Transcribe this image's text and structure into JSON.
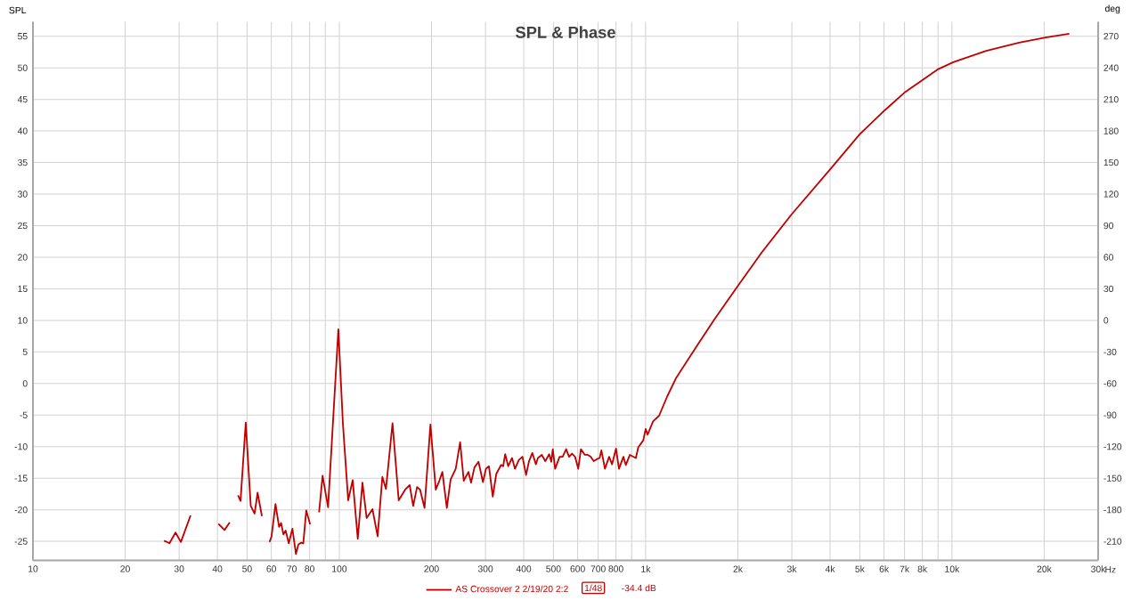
{
  "chart_data": {
    "type": "line",
    "title": "SPL & Phase",
    "ylabel": "SPL",
    "y2label": "deg",
    "log": "x",
    "grid": true,
    "legend": "bottom",
    "xlim": [
      10,
      30000
    ],
    "ylim": [
      -28,
      57.3
    ],
    "y2lim": [
      -228,
      283.8
    ],
    "xticks": [
      10,
      20,
      30,
      40,
      50,
      60,
      70,
      80,
      {
        "value": 90,
        "label": null
      },
      100,
      200,
      300,
      400,
      500,
      600,
      700,
      800,
      {
        "value": 900,
        "label": null
      },
      {
        "value": 1000,
        "label": "1k"
      },
      {
        "value": 2000,
        "label": "2k"
      },
      {
        "value": 3000,
        "label": "3k"
      },
      {
        "value": 4000,
        "label": "4k"
      },
      {
        "value": 5000,
        "label": "5k"
      },
      {
        "value": 6000,
        "label": "6k"
      },
      {
        "value": 7000,
        "label": "7k"
      },
      {
        "value": 8000,
        "label": "8k"
      },
      {
        "value": 9000,
        "label": null
      },
      {
        "value": 10000,
        "label": "10k"
      },
      {
        "value": 20000,
        "label": "20k"
      },
      {
        "value": 30000,
        "label": "30k"
      }
    ],
    "xlabel": "Hz",
    "yticks": [
      -25,
      -20,
      -15,
      -10,
      -5,
      0,
      5,
      10,
      15,
      20,
      25,
      30,
      35,
      40,
      45,
      50,
      55
    ],
    "y2ticks": [
      -210,
      -180,
      -150,
      -120,
      -90,
      -60,
      -30,
      0,
      30,
      60,
      90,
      120,
      150,
      180,
      210,
      240,
      270
    ],
    "annotations": [
      "1/48",
      "-34.4 dB"
    ],
    "series": [
      {
        "name": "AS Crossover 2 2/19/20 2:2",
        "color": "#c00000",
        "x": [
          26.8,
          27.9,
          29.2,
          30.4,
          32.7,
          null,
          40.3,
          42.2,
          43.9,
          null,
          46.7,
          47.6,
          49.5,
          51.4,
          52.9,
          54.1,
          55.9,
          null,
          59.2,
          60.1,
          61.9,
          63.6,
          64.6,
          65.7,
          66.8,
          68.4,
          70.3,
          72.2,
          73.5,
          75.1,
          76.3,
          78.0,
          80.3,
          null,
          85.9,
          88.2,
          91.9,
          99.3,
          102.7,
          106.9,
          110.6,
          114.9,
          119.0,
          122.8,
          128.3,
          133.4,
          138.2,
          142.0,
          149.2,
          156.3,
          164.1,
          169.7,
          174.3,
          179.4,
          183.5,
          189.8,
          198.4,
          206.5,
          212.1,
          217.0,
          224.4,
          230.9,
          239.9,
          248.0,
          254.8,
          264.0,
          269.3,
          276.1,
          284.7,
          294.4,
          301.2,
          307.9,
          316.9,
          325.5,
          337.5,
          342.7,
          348.0,
          356.0,
          366.4,
          374.5,
          385.7,
          396.3,
          407.1,
          416.2,
          426.6,
          438.2,
          445.0,
          458.0,
          470.4,
          484.4,
          492.0,
          497.6,
          506.4,
          523.6,
          535.7,
          550.2,
          562.3,
          574.9,
          588.2,
          602.5,
          614.8,
          633.1,
          647.1,
          661.6,
          676.8,
          692.0,
          707.5,
          717.1,
          736.6,
          760.1,
          777.1,
          800.3,
          818.2,
          846.0,
          861.5,
          888.3,
          929.0,
          946.0,
          982.2,
          1000,
          1015,
          1057,
          1106,
          1177,
          1258,
          1477,
          1673,
          1990,
          2397,
          2996,
          4033,
          5003,
          6040,
          7046,
          9026,
          10090,
          12930,
          16570,
          20210,
          24150
        ],
        "values": [
          -24.9,
          -25.3,
          -23.6,
          -25.1,
          -20.9,
          null,
          -22.2,
          -23.2,
          -22.0,
          null,
          -17.7,
          -18.6,
          -6.2,
          -19.4,
          -20.6,
          -17.3,
          -21.0,
          null,
          -25.1,
          -24.2,
          -19.1,
          -22.7,
          -22.1,
          -23.9,
          -23.3,
          -25.3,
          -23.0,
          -27.0,
          -25.5,
          -25.2,
          -25.3,
          -20.1,
          -22.3,
          null,
          -20.4,
          -14.6,
          -19.6,
          8.6,
          -6.2,
          -18.5,
          -15.3,
          -24.6,
          -15.7,
          -21.3,
          -19.9,
          -24.2,
          -14.8,
          -16.7,
          -6.3,
          -18.5,
          -16.8,
          -16.1,
          -19.4,
          -16.4,
          -16.8,
          -19.7,
          -6.5,
          -16.8,
          -15.4,
          -14.0,
          -19.7,
          -15.2,
          -13.5,
          -9.3,
          -15.4,
          -14.0,
          -15.7,
          -13.3,
          -12.4,
          -15.6,
          -13.5,
          -13.1,
          -17.9,
          -14.3,
          -12.9,
          -13.1,
          -11.2,
          -13.1,
          -11.8,
          -13.5,
          -12.1,
          -11.6,
          -14.5,
          -12.3,
          -11.0,
          -12.8,
          -11.8,
          -11.3,
          -12.3,
          -11.2,
          -12.4,
          -10.4,
          -13.5,
          -11.6,
          -11.6,
          -10.4,
          -11.6,
          -11.1,
          -11.6,
          -13.5,
          -10.4,
          -11.3,
          -11.3,
          -11.6,
          -12.3,
          -12.0,
          -11.8,
          -10.6,
          -13.5,
          -11.6,
          -12.8,
          -10.3,
          -13.5,
          -11.6,
          -12.9,
          -11.3,
          -11.8,
          -10.1,
          -9.0,
          -7.2,
          -8.1,
          -6.0,
          -5.1,
          -2.0,
          0.9,
          6.1,
          10.1,
          15.3,
          20.8,
          26.8,
          34.1,
          39.5,
          43.3,
          46.2,
          49.8,
          50.9,
          52.7,
          54.0,
          54.8,
          55.4
        ]
      }
    ]
  }
}
